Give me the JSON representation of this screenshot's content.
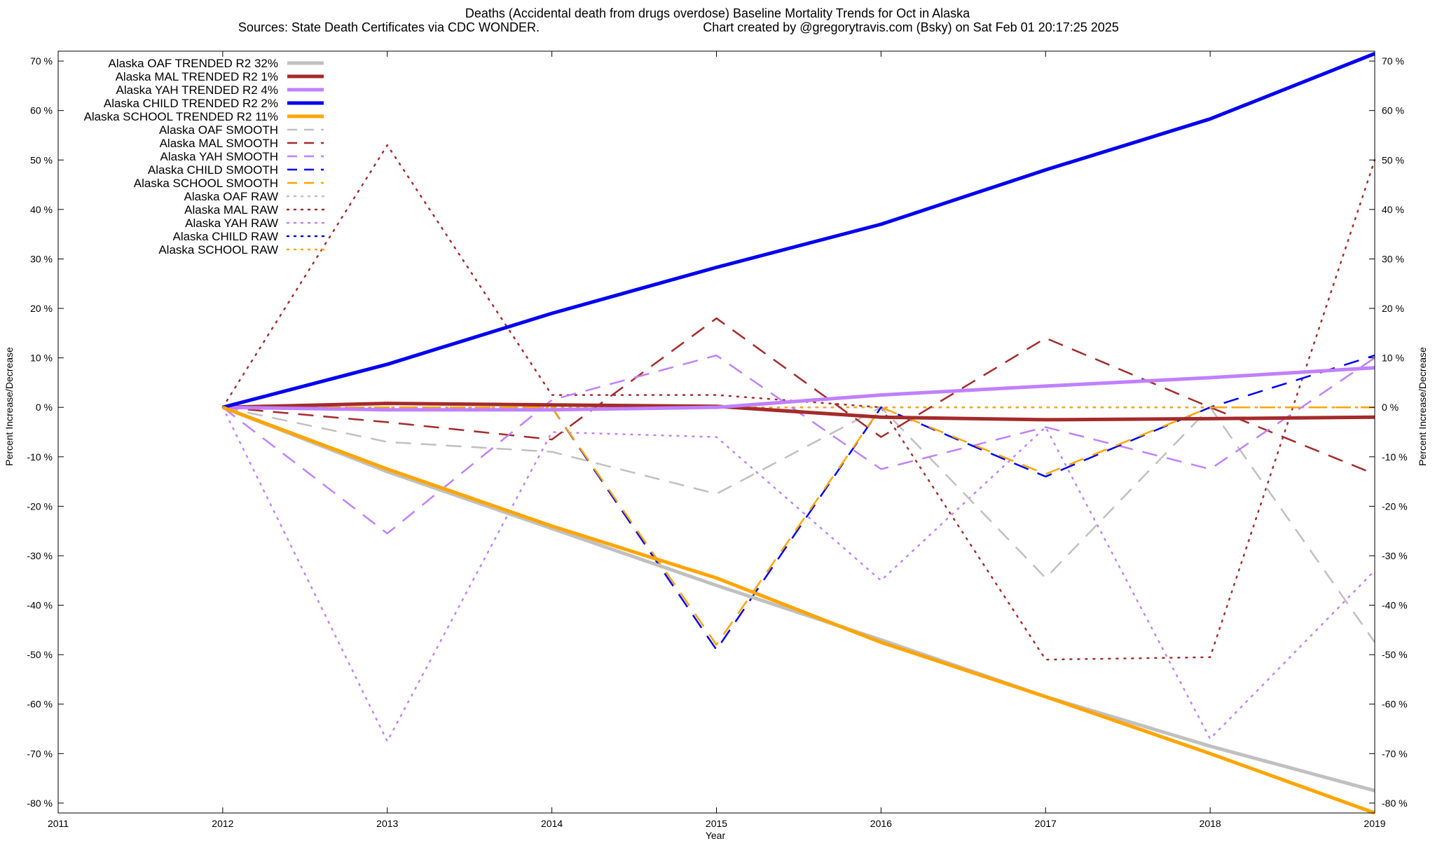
{
  "chart_data": {
    "type": "line",
    "title": "Deaths (Accidental death from drugs overdose)  Baseline Mortality Trends for Oct in Alaska",
    "subtitle_left": "Sources: State Death Certificates via CDC WONDER.",
    "subtitle_right": "Chart created by @gregorytravis.com (Bsky) on Sat Feb 01 20:17:25 2025",
    "xlabel": "Year",
    "ylabel_left": "Percent Increase/Decrease",
    "ylabel_right": "Percent Increase/Decrease",
    "xlim": [
      2011,
      2019
    ],
    "ylim": [
      -82,
      72
    ],
    "x_ticks": [
      "2011",
      "2012",
      "2013",
      "2014",
      "2015",
      "2016",
      "2017",
      "2018",
      "2019"
    ],
    "y_ticks": [
      "70 %",
      "60 %",
      "50 %",
      "40 %",
      "30 %",
      "20 %",
      "10 %",
      "0 %",
      "-10 %",
      "-20 %",
      "-30 %",
      "-40 %",
      "-50 %",
      "-60 %",
      "-70 %",
      "-80 %"
    ],
    "y_tick_values": [
      70,
      60,
      50,
      40,
      30,
      20,
      10,
      0,
      -10,
      -20,
      -30,
      -40,
      -50,
      -60,
      -70,
      -80
    ],
    "grid": false,
    "legend_position": "top-left",
    "x": [
      2012,
      2013,
      2014,
      2015,
      2016,
      2017,
      2018,
      2019
    ],
    "series": [
      {
        "name": "Alaska OAF TRENDED R2  32%",
        "style": "solid",
        "color": "#c0c0c0",
        "values": [
          0,
          -13,
          -24.5,
          -36,
          -47,
          -58.5,
          -68.5,
          -77.5
        ]
      },
      {
        "name": "Alaska MAL TRENDED R2   1%",
        "style": "solid",
        "color": "#a52a2a",
        "values": [
          0,
          0.8,
          0.5,
          0.2,
          -2,
          -2.5,
          -2.3,
          -2
        ]
      },
      {
        "name": "Alaska YAH TRENDED R2   4%",
        "style": "solid",
        "color": "#c080ff",
        "values": [
          0,
          -0.5,
          -0.5,
          0,
          2.5,
          4.3,
          6,
          8
        ]
      },
      {
        "name": "Alaska CHILD TRENDED R2   2%",
        "style": "solid",
        "color": "#0000ee",
        "values": [
          0,
          8.7,
          19,
          28.3,
          37,
          48,
          58.3,
          71.5
        ]
      },
      {
        "name": "Alaska SCHOOL TRENDED R2  11%",
        "style": "solid",
        "color": "#ffa500",
        "values": [
          0,
          -12.5,
          -24,
          -34.5,
          -47.5,
          -58.5,
          -70,
          -82
        ]
      },
      {
        "name": "Alaska OAF SMOOTH",
        "style": "dashed",
        "color": "#c0c0c0",
        "values": [
          0,
          -7,
          -9,
          -17.5,
          0,
          -34.5,
          0,
          -47.5
        ]
      },
      {
        "name": "Alaska MAL SMOOTH",
        "style": "dashed",
        "color": "#a52a2a",
        "values": [
          0,
          -3,
          -6.5,
          18,
          -6,
          14,
          0,
          -13.5
        ]
      },
      {
        "name": "Alaska YAH SMOOTH",
        "style": "dashed",
        "color": "#c080ff",
        "values": [
          0,
          -25.5,
          1.5,
          10.5,
          -12.5,
          -4,
          -12.5,
          10
        ]
      },
      {
        "name": "Alaska CHILD SMOOTH",
        "style": "dashed",
        "color": "#0000ee",
        "values": [
          0,
          0,
          0,
          -49,
          0,
          -14,
          0,
          10.5
        ]
      },
      {
        "name": "Alaska SCHOOL SMOOTH",
        "style": "dashed",
        "color": "#ffa500",
        "values": [
          0,
          0,
          0,
          -48,
          0,
          -13.5,
          0,
          0
        ]
      },
      {
        "name": "Alaska OAF RAW",
        "style": "dotted",
        "color": "#c0c0c0",
        "values": [
          0,
          0,
          0,
          0,
          0,
          0,
          0,
          0
        ]
      },
      {
        "name": "Alaska MAL RAW",
        "style": "dotted",
        "color": "#a52a2a",
        "values": [
          0,
          53,
          2.5,
          2.5,
          0,
          -51,
          -50.5,
          50
        ]
      },
      {
        "name": "Alaska YAH RAW",
        "style": "dotted",
        "color": "#c080ff",
        "values": [
          0,
          -67.5,
          -5,
          -6,
          -35,
          -4,
          -67,
          -33
        ]
      },
      {
        "name": "Alaska CHILD RAW",
        "style": "dotted",
        "color": "#0000ee",
        "values": [
          0,
          0,
          0,
          0,
          0,
          0,
          0,
          0
        ]
      },
      {
        "name": "Alaska SCHOOL RAW",
        "style": "dotted",
        "color": "#ffa500",
        "values": [
          0,
          0,
          0,
          0,
          0,
          0,
          0,
          0
        ]
      }
    ]
  }
}
